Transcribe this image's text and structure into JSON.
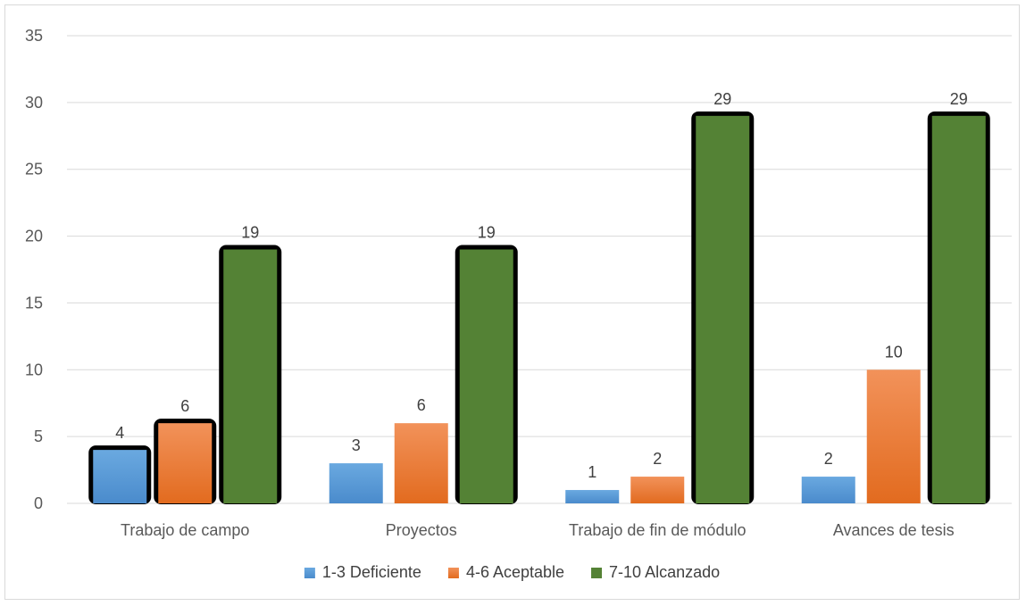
{
  "chart_data": {
    "type": "bar",
    "title": "",
    "xlabel": "",
    "ylabel": "",
    "categories": [
      "Trabajo de campo",
      "Proyectos",
      "Trabajo de fin de módulo",
      "Avances de tesis"
    ],
    "series": [
      {
        "name": "1-3 Deficiente",
        "values": [
          4,
          3,
          1,
          2
        ],
        "color": "#5b9bd5",
        "highlight": [
          true,
          false,
          false,
          false
        ]
      },
      {
        "name": "4-6 Aceptable",
        "values": [
          6,
          6,
          2,
          10
        ],
        "color": "#ed7d31",
        "highlight": [
          true,
          false,
          false,
          false
        ]
      },
      {
        "name": "7-10 Alcanzado",
        "values": [
          19,
          19,
          29,
          29
        ],
        "color": "#548235",
        "highlight": [
          true,
          true,
          true,
          true
        ]
      }
    ],
    "ylim": [
      0,
      35
    ],
    "yticks": [
      "0",
      "5",
      "10",
      "15",
      "20",
      "25",
      "30",
      "35"
    ],
    "grid": true,
    "legend": "bottom",
    "data_labels": true
  }
}
